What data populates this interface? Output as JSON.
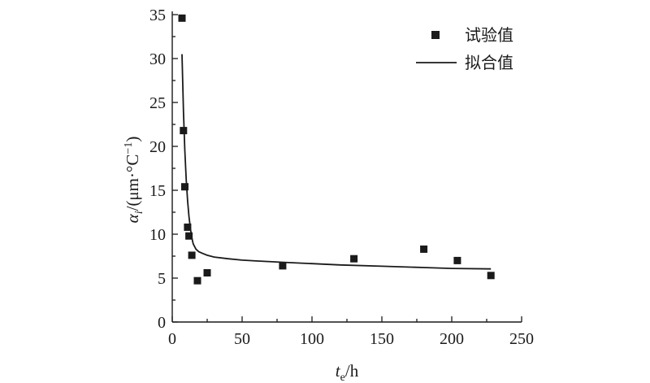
{
  "chart_data": {
    "type": "scatter",
    "xlim": [
      0,
      250
    ],
    "ylim": [
      0,
      35
    ],
    "x_ticks": [
      "0",
      "50",
      "100",
      "150",
      "200",
      "250"
    ],
    "y_ticks": [
      "0",
      "5",
      "10",
      "15",
      "20",
      "25",
      "30",
      "35"
    ],
    "xlabel": {
      "main": "t",
      "sub": "e",
      "unit": "/h"
    },
    "ylabel": {
      "main": "α",
      "sub": "i",
      "unit": "/(μm·°C",
      "sup": "−1",
      "close": ")"
    },
    "legend": {
      "placement": "top-right",
      "entries": [
        "试验值",
        "拟合值"
      ]
    },
    "grid": false,
    "series": [
      {
        "name": "试验值",
        "style": "square-marker",
        "x": [
          7,
          8,
          9,
          11,
          12,
          14,
          18,
          25,
          79,
          130,
          180,
          204,
          228
        ],
        "y": [
          34.6,
          21.8,
          15.4,
          10.8,
          9.8,
          7.6,
          4.7,
          5.6,
          6.4,
          7.2,
          8.3,
          7.0,
          5.3
        ]
      },
      {
        "name": "拟合值",
        "style": "line",
        "x": [
          7,
          8,
          9,
          10,
          11,
          12,
          13,
          14,
          15,
          17,
          19,
          22,
          25,
          30,
          40,
          50,
          60,
          80,
          100,
          120,
          150,
          180,
          200,
          228
        ],
        "y": [
          30.5,
          24.0,
          19.5,
          16.2,
          13.8,
          12.0,
          10.6,
          9.6,
          8.9,
          8.3,
          8.0,
          7.8,
          7.6,
          7.4,
          7.2,
          7.05,
          6.95,
          6.8,
          6.65,
          6.5,
          6.35,
          6.2,
          6.1,
          6.05
        ]
      }
    ]
  }
}
